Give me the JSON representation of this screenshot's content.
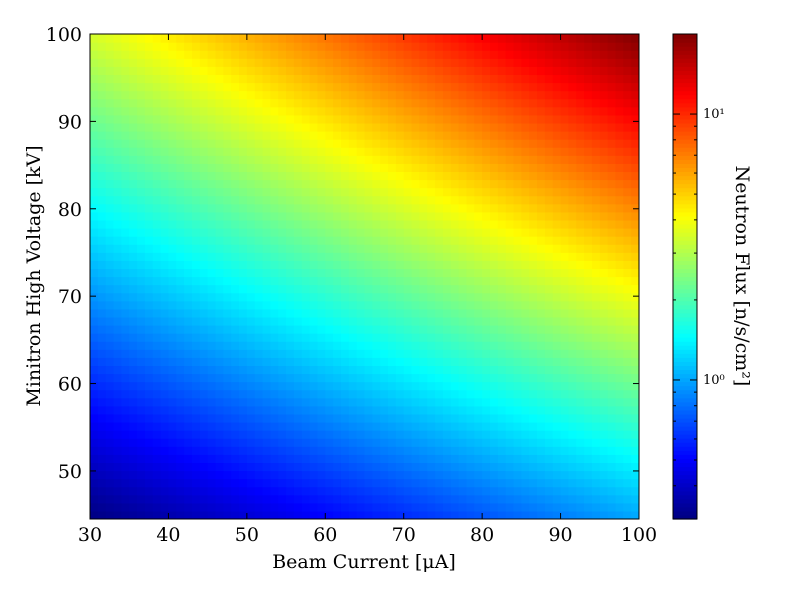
{
  "chart_data": {
    "type": "heatmap",
    "title": "",
    "xlabel": "Beam Current [μA]",
    "ylabel": "Minitron High Voltage [kV]",
    "colorbar_label": "Neutron Flux [n/s/cm²]",
    "xlim": [
      30,
      100
    ],
    "ylim": [
      44.5,
      100
    ],
    "x_ticks": [
      "30",
      "40",
      "50",
      "60",
      "70",
      "80",
      "90",
      "100"
    ],
    "y_ticks": [
      "50",
      "60",
      "70",
      "80",
      "90",
      "100"
    ],
    "colorbar": {
      "scale": "log",
      "range": [
        0.3,
        20
      ],
      "ticks": [
        {
          "value": 1,
          "label": "10⁰"
        },
        {
          "value": 10,
          "label": "10¹"
        }
      ]
    },
    "colormap": "jet",
    "grid": false,
    "samples": {
      "x": [
        30,
        100
      ],
      "y": [
        44.5,
        100
      ],
      "z": [
        [
          0.3,
          1.0
        ],
        [
          3.5,
          20
        ]
      ]
    }
  }
}
